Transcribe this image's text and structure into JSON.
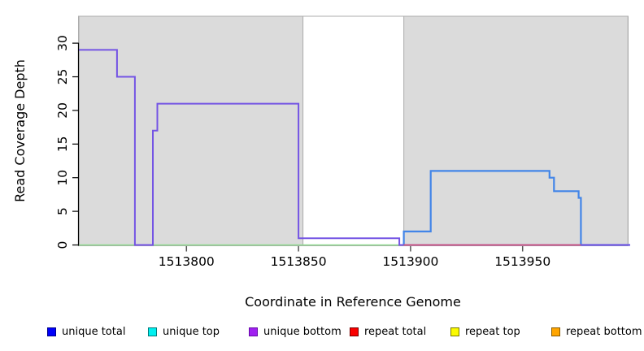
{
  "chart_data": {
    "type": "line",
    "subtype": "step",
    "title": "",
    "xlabel": "Coordinate in Reference Genome",
    "ylabel": "Read Coverage Depth",
    "xlim": [
      1513752,
      1513998
    ],
    "ylim": [
      0,
      34
    ],
    "grid": false,
    "x_tick_values": [
      1513800,
      1513850,
      1513900,
      1513950
    ],
    "x_tick_labels": [
      "1513800",
      "1513850",
      "1513900",
      "1513950"
    ],
    "y_tick_values": [
      0,
      5,
      10,
      15,
      20,
      25,
      30
    ],
    "y_tick_labels": [
      "0",
      "5",
      "10",
      "15",
      "20",
      "25",
      "30"
    ],
    "background_regions": [
      {
        "name": "shaded-region-left",
        "x0": 1513752,
        "x1": 1513852,
        "fill": "#DBDBDB",
        "border": "#ACACAC"
      },
      {
        "name": "shaded-region-right",
        "x0": 1513897,
        "x1": 1513997,
        "fill": "#DBDBDB",
        "border": "#ACACAC"
      }
    ],
    "series": [
      {
        "name": "unique top / repeat top (depth 0 baseline)",
        "color": "#8FD98F",
        "width": 1.6,
        "points": [
          [
            1513752,
            0
          ],
          [
            1513897,
            0
          ]
        ]
      },
      {
        "name": "unique total",
        "color": "#4285E8",
        "width": 2.2,
        "points": [
          [
            1513897,
            0
          ],
          [
            1513897,
            2
          ],
          [
            1513909,
            2
          ],
          [
            1513909,
            11
          ],
          [
            1513962,
            11
          ],
          [
            1513962,
            10
          ],
          [
            1513964,
            10
          ],
          [
            1513964,
            8
          ],
          [
            1513975,
            8
          ],
          [
            1513975,
            7
          ],
          [
            1513976,
            7
          ],
          [
            1513976,
            0
          ],
          [
            1513998,
            0
          ]
        ]
      },
      {
        "name": "unique bottom",
        "color": "#7454E4",
        "width": 2,
        "points": [
          [
            1513752,
            29
          ],
          [
            1513769,
            29
          ],
          [
            1513769,
            25
          ],
          [
            1513777,
            25
          ],
          [
            1513777,
            0
          ],
          [
            1513785,
            0
          ],
          [
            1513785,
            17
          ],
          [
            1513787,
            17
          ],
          [
            1513787,
            21
          ],
          [
            1513850,
            21
          ],
          [
            1513850,
            1
          ],
          [
            1513895,
            1
          ],
          [
            1513895,
            0
          ],
          [
            1513998,
            0
          ]
        ]
      },
      {
        "name": "repeat total",
        "color": "#DC536F",
        "width": 1.6,
        "points": [
          [
            1513897,
            0
          ],
          [
            1513976,
            0
          ]
        ]
      }
    ]
  },
  "legend": {
    "items": [
      {
        "label": "unique total",
        "fill": "#0000FA",
        "border": "#00008B"
      },
      {
        "label": "unique top",
        "fill": "#00F0F0",
        "border": "#007A7A"
      },
      {
        "label": "unique bottom",
        "fill": "#A020F0",
        "border": "#660AA8"
      },
      {
        "label": "repeat total",
        "fill": "#FA0000",
        "border": "#7A0000"
      },
      {
        "label": "repeat top",
        "fill": "#FAFA00",
        "border": "#7A7A00"
      },
      {
        "label": "repeat bottom",
        "fill": "#FFA500",
        "border": "#8A5A00"
      }
    ]
  }
}
